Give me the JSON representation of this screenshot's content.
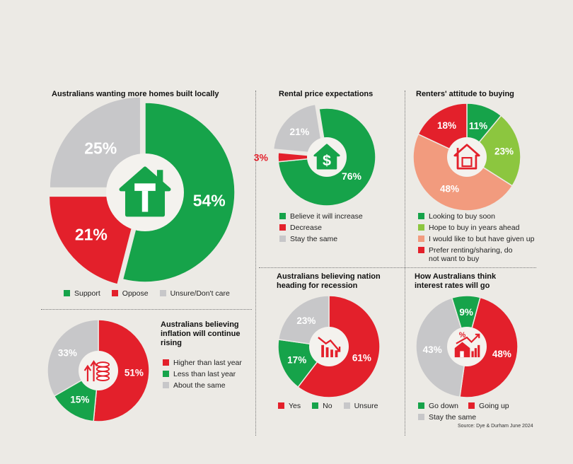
{
  "colors": {
    "green": "#16a34a",
    "red": "#e3202b",
    "grey": "#c7c7c9",
    "lime": "#8cc63f",
    "salmon": "#f29b7e"
  },
  "source": "Source: Dye & Durham June 2024",
  "chart_data": [
    {
      "id": "homes",
      "type": "pie",
      "title": "Australians wanting more homes built locally",
      "icon": "house-hammer-icon",
      "slices": [
        {
          "label": "Support",
          "value": 54,
          "display": "54%",
          "color": "#16a34a"
        },
        {
          "label": "Oppose",
          "value": 21,
          "display": "21%",
          "color": "#e3202b"
        },
        {
          "label": "Unsure/Don't care",
          "value": 25,
          "display": "25%",
          "color": "#c7c7c9"
        }
      ]
    },
    {
      "id": "rental",
      "type": "pie",
      "title": "Rental price expectations",
      "icon": "house-dollar-icon",
      "slices": [
        {
          "label": "Believe it will increase",
          "value": 76,
          "display": "76%",
          "color": "#16a34a"
        },
        {
          "label": "Decrease",
          "value": 3,
          "display": "3%",
          "color": "#e3202b"
        },
        {
          "label": "Stay the same",
          "value": 21,
          "display": "21%",
          "color": "#c7c7c9"
        }
      ]
    },
    {
      "id": "renters",
      "type": "pie",
      "title": "Renters' attitude to buying",
      "icon": "house-sign-icon",
      "slices": [
        {
          "label": "Looking to buy soon",
          "value": 11,
          "display": "11%",
          "color": "#16a34a"
        },
        {
          "label": "Hope to buy in years ahead",
          "value": 23,
          "display": "23%",
          "color": "#8cc63f"
        },
        {
          "label": "I would like to but have given up",
          "value": 48,
          "display": "48%",
          "color": "#f29b7e"
        },
        {
          "label": "Prefer renting/sharing, do not want to buy",
          "value": 18,
          "display": "18%",
          "color": "#e3202b"
        }
      ]
    },
    {
      "id": "inflation",
      "type": "pie",
      "title": "Australians believing inflation will continue rising",
      "icon": "coins-arrows-icon",
      "slices": [
        {
          "label": "Higher than last year",
          "value": 51,
          "display": "51%",
          "color": "#e3202b"
        },
        {
          "label": "Less than last year",
          "value": 15,
          "display": "15%",
          "color": "#16a34a"
        },
        {
          "label": "About the same",
          "value": 33,
          "display": "33%",
          "color": "#c7c7c9"
        }
      ]
    },
    {
      "id": "recession",
      "type": "pie",
      "title": "Australians believing nation heading for recession",
      "icon": "falling-chart-icon",
      "slices": [
        {
          "label": "Yes",
          "value": 61,
          "display": "61%",
          "color": "#e3202b"
        },
        {
          "label": "No",
          "value": 17,
          "display": "17%",
          "color": "#16a34a"
        },
        {
          "label": "Unsure",
          "value": 23,
          "display": "23%",
          "color": "#c7c7c9"
        }
      ]
    },
    {
      "id": "rates",
      "type": "pie",
      "title": "How Australians think interest rates will go",
      "icon": "house-percent-icon",
      "slices": [
        {
          "label": "Go down",
          "value": 9,
          "display": "9%",
          "color": "#16a34a"
        },
        {
          "label": "Going up",
          "value": 48,
          "display": "48%",
          "color": "#e3202b"
        },
        {
          "label": "Stay the same",
          "value": 43,
          "display": "43%",
          "color": "#c7c7c9"
        }
      ]
    }
  ]
}
